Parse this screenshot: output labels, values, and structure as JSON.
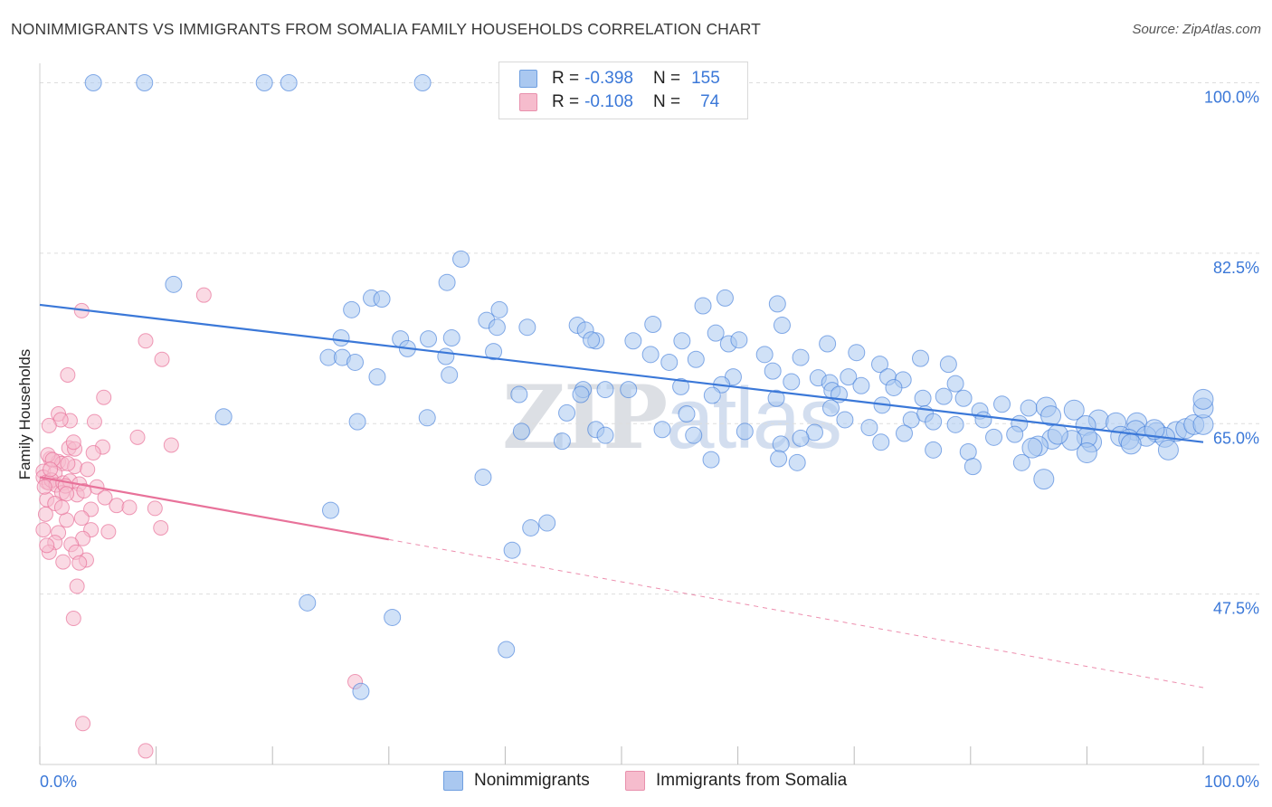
{
  "title": "NONIMMIGRANTS VS IMMIGRANTS FROM SOMALIA FAMILY HOUSEHOLDS CORRELATION CHART",
  "source": "Source: ZipAtlas.com",
  "watermark": {
    "zip": "ZIP",
    "atlas": "atlas"
  },
  "legend": {
    "r_label": "R =",
    "n_label": "N =",
    "series1": {
      "r": "-0.398",
      "n": "155"
    },
    "series2": {
      "r": "-0.108",
      "n": "74"
    }
  },
  "bottom_legend": {
    "series1": "Nonimmigrants",
    "series2": "Immigrants from Somalia"
  },
  "colors": {
    "blue": "#3b78d8",
    "blue_fill": "#aac8f0",
    "pink": "#e8729a",
    "pink_fill": "#f6bccd",
    "grid": "#dddddd"
  },
  "chart_data": {
    "type": "scatter",
    "title": "NONIMMIGRANTS VS IMMIGRANTS FROM SOMALIA FAMILY HOUSEHOLDS CORRELATION CHART",
    "xlabel": "",
    "ylabel": "Family Households",
    "xlim": [
      0,
      100
    ],
    "ylim": [
      30,
      102
    ],
    "x_tick_labels": [
      "0.0%",
      "100.0%"
    ],
    "y_ticks": [
      47.5,
      65.0,
      82.5,
      100.0
    ],
    "y_tick_labels": [
      "47.5%",
      "65.0%",
      "82.5%",
      "100.0%"
    ],
    "series": [
      {
        "name": "Nonimmigrants",
        "r": -0.398,
        "n": 155,
        "trend": {
          "x": [
            0,
            100
          ],
          "y": [
            77.2,
            63.1
          ]
        },
        "points": [
          [
            4.6,
            100
          ],
          [
            9.0,
            100
          ],
          [
            19.3,
            100
          ],
          [
            21.4,
            100
          ],
          [
            32.9,
            100
          ],
          [
            36.2,
            81.9
          ],
          [
            35.0,
            79.5
          ],
          [
            11.5,
            79.3
          ],
          [
            28.5,
            77.9
          ],
          [
            29.4,
            77.8
          ],
          [
            26.8,
            76.7
          ],
          [
            39.5,
            76.7
          ],
          [
            41.9,
            74.9
          ],
          [
            46.2,
            75.1
          ],
          [
            46.9,
            74.6
          ],
          [
            52.7,
            75.2
          ],
          [
            57.0,
            77.1
          ],
          [
            58.9,
            77.9
          ],
          [
            63.4,
            77.3
          ],
          [
            25.9,
            73.8
          ],
          [
            31.0,
            73.7
          ],
          [
            31.6,
            72.7
          ],
          [
            33.4,
            73.7
          ],
          [
            35.4,
            73.8
          ],
          [
            38.4,
            75.6
          ],
          [
            39.3,
            74.9
          ],
          [
            47.8,
            73.5
          ],
          [
            47.4,
            73.6
          ],
          [
            51.0,
            73.5
          ],
          [
            55.2,
            73.5
          ],
          [
            58.1,
            74.3
          ],
          [
            59.2,
            73.2
          ],
          [
            60.1,
            73.6
          ],
          [
            63.8,
            75.1
          ],
          [
            67.7,
            73.2
          ],
          [
            24.8,
            71.8
          ],
          [
            26.0,
            71.8
          ],
          [
            27.1,
            71.3
          ],
          [
            34.9,
            71.9
          ],
          [
            39.0,
            72.4
          ],
          [
            52.5,
            72.1
          ],
          [
            54.1,
            71.3
          ],
          [
            62.3,
            72.1
          ],
          [
            65.4,
            71.8
          ],
          [
            70.2,
            72.3
          ],
          [
            72.2,
            71.1
          ],
          [
            75.7,
            71.7
          ],
          [
            78.1,
            71.1
          ],
          [
            29.0,
            69.8
          ],
          [
            35.2,
            70.0
          ],
          [
            56.4,
            71.6
          ],
          [
            59.6,
            69.8
          ],
          [
            63.0,
            70.4
          ],
          [
            66.9,
            69.7
          ],
          [
            67.9,
            69.2
          ],
          [
            69.5,
            69.8
          ],
          [
            70.6,
            68.9
          ],
          [
            72.9,
            69.8
          ],
          [
            74.2,
            69.5
          ],
          [
            58.6,
            69.0
          ],
          [
            64.6,
            69.3
          ],
          [
            46.7,
            68.5
          ],
          [
            48.6,
            68.5
          ],
          [
            50.6,
            68.5
          ],
          [
            55.1,
            68.8
          ],
          [
            68.1,
            68.4
          ],
          [
            73.4,
            68.7
          ],
          [
            78.7,
            69.1
          ],
          [
            41.2,
            68.0
          ],
          [
            46.5,
            68.0
          ],
          [
            57.8,
            67.9
          ],
          [
            63.3,
            67.6
          ],
          [
            68.7,
            68.0
          ],
          [
            72.4,
            66.9
          ],
          [
            75.9,
            67.6
          ],
          [
            77.7,
            67.8
          ],
          [
            79.4,
            67.6
          ],
          [
            80.8,
            66.3
          ],
          [
            82.7,
            67.0
          ],
          [
            85.0,
            66.6
          ],
          [
            86.5,
            66.7
          ],
          [
            88.9,
            66.4
          ],
          [
            91.0,
            65.4
          ],
          [
            92.5,
            65.1
          ],
          [
            27.3,
            65.2
          ],
          [
            33.3,
            65.6
          ],
          [
            15.8,
            65.7
          ],
          [
            45.3,
            66.1
          ],
          [
            55.6,
            66.0
          ],
          [
            68.0,
            66.6
          ],
          [
            74.9,
            65.4
          ],
          [
            76.1,
            66.0
          ],
          [
            81.1,
            65.4
          ],
          [
            84.2,
            65.0
          ],
          [
            86.9,
            65.8
          ],
          [
            89.9,
            64.8
          ],
          [
            94.3,
            65.1
          ],
          [
            96.0,
            64.1
          ],
          [
            97.7,
            64.2
          ],
          [
            98.5,
            64.5
          ],
          [
            99.2,
            64.9
          ],
          [
            100,
            64.9
          ],
          [
            100,
            66.6
          ],
          [
            100,
            67.5
          ],
          [
            94.2,
            64.3
          ],
          [
            95.1,
            63.7
          ],
          [
            96.7,
            63.6
          ],
          [
            95.8,
            64.4
          ],
          [
            92.9,
            63.7
          ],
          [
            93.6,
            63.4
          ],
          [
            90.4,
            63.1
          ],
          [
            90.0,
            63.6
          ],
          [
            88.7,
            63.3
          ],
          [
            87.0,
            63.4
          ],
          [
            85.8,
            62.7
          ],
          [
            85.3,
            62.5
          ],
          [
            83.8,
            63.9
          ],
          [
            82.0,
            63.6
          ],
          [
            78.7,
            64.9
          ],
          [
            76.8,
            65.2
          ],
          [
            74.3,
            64.0
          ],
          [
            72.3,
            63.1
          ],
          [
            71.3,
            64.6
          ],
          [
            69.2,
            65.4
          ],
          [
            66.6,
            64.1
          ],
          [
            65.4,
            63.5
          ],
          [
            63.7,
            62.9
          ],
          [
            60.6,
            64.2
          ],
          [
            56.2,
            63.8
          ],
          [
            53.5,
            64.4
          ],
          [
            47.8,
            64.4
          ],
          [
            41.4,
            64.2
          ],
          [
            44.9,
            63.2
          ],
          [
            48.6,
            63.8
          ],
          [
            57.7,
            61.3
          ],
          [
            63.5,
            61.4
          ],
          [
            76.8,
            62.3
          ],
          [
            79.8,
            62.1
          ],
          [
            93.8,
            62.9
          ],
          [
            90.0,
            62.0
          ],
          [
            84.4,
            61.0
          ],
          [
            80.2,
            60.6
          ],
          [
            86.3,
            59.3
          ],
          [
            38.1,
            59.5
          ],
          [
            25.0,
            56.1
          ],
          [
            42.2,
            54.3
          ],
          [
            43.6,
            54.8
          ],
          [
            40.6,
            52.0
          ],
          [
            23.0,
            46.6
          ],
          [
            30.3,
            45.1
          ],
          [
            40.1,
            41.8
          ],
          [
            27.6,
            37.5
          ],
          [
            65.1,
            61.0
          ],
          [
            97.0,
            62.3
          ],
          [
            87.5,
            63.9
          ]
        ]
      },
      {
        "name": "Immigrants from Somalia",
        "r": -0.108,
        "n": 74,
        "trend": {
          "x": [
            0,
            30
          ],
          "y": [
            59.5,
            53.1
          ]
        },
        "trend_dashed": {
          "x": [
            30,
            100
          ],
          "y": [
            53.1,
            37.9
          ]
        },
        "points": [
          [
            14.1,
            78.2
          ],
          [
            3.6,
            76.6
          ],
          [
            9.1,
            73.5
          ],
          [
            10.5,
            71.6
          ],
          [
            2.4,
            70.0
          ],
          [
            5.5,
            67.7
          ],
          [
            1.6,
            66.0
          ],
          [
            4.7,
            65.2
          ],
          [
            2.6,
            65.3
          ],
          [
            1.8,
            65.4
          ],
          [
            0.8,
            64.8
          ],
          [
            8.4,
            63.6
          ],
          [
            2.5,
            62.5
          ],
          [
            5.4,
            62.6
          ],
          [
            11.3,
            62.8
          ],
          [
            3.0,
            62.4
          ],
          [
            0.9,
            61.4
          ],
          [
            1.6,
            61.1
          ],
          [
            1.9,
            60.9
          ],
          [
            3.0,
            60.6
          ],
          [
            0.3,
            60.1
          ],
          [
            0.7,
            61.8
          ],
          [
            1.3,
            59.9
          ],
          [
            2.4,
            60.9
          ],
          [
            4.1,
            60.3
          ],
          [
            0.3,
            59.5
          ],
          [
            0.6,
            59.0
          ],
          [
            0.8,
            58.9
          ],
          [
            1.0,
            59.2
          ],
          [
            1.4,
            58.7
          ],
          [
            2.0,
            58.9
          ],
          [
            2.6,
            59.1
          ],
          [
            3.4,
            58.8
          ],
          [
            4.9,
            58.5
          ],
          [
            1.9,
            57.9
          ],
          [
            3.2,
            57.7
          ],
          [
            0.6,
            57.2
          ],
          [
            5.6,
            57.4
          ],
          [
            6.6,
            56.6
          ],
          [
            4.4,
            56.2
          ],
          [
            7.7,
            56.4
          ],
          [
            1.3,
            56.8
          ],
          [
            3.6,
            55.3
          ],
          [
            0.5,
            55.7
          ],
          [
            2.3,
            55.1
          ],
          [
            0.3,
            54.1
          ],
          [
            1.6,
            53.8
          ],
          [
            4.4,
            54.1
          ],
          [
            5.9,
            53.9
          ],
          [
            3.7,
            53.2
          ],
          [
            10.4,
            54.3
          ],
          [
            1.3,
            52.8
          ],
          [
            2.7,
            52.6
          ],
          [
            0.8,
            51.8
          ],
          [
            3.1,
            51.8
          ],
          [
            4.0,
            51.0
          ],
          [
            3.4,
            50.7
          ],
          [
            2.0,
            50.8
          ],
          [
            9.9,
            56.3
          ],
          [
            0.6,
            52.5
          ],
          [
            3.2,
            48.3
          ],
          [
            2.9,
            45.0
          ],
          [
            27.1,
            38.5
          ],
          [
            3.7,
            34.2
          ],
          [
            9.1,
            31.4
          ],
          [
            2.2,
            58.6
          ],
          [
            0.4,
            58.5
          ],
          [
            1.1,
            61.3
          ],
          [
            2.9,
            63.1
          ],
          [
            4.6,
            62.0
          ],
          [
            3.8,
            58.1
          ],
          [
            1.9,
            56.4
          ],
          [
            0.9,
            60.3
          ],
          [
            2.3,
            57.8
          ]
        ]
      }
    ]
  }
}
